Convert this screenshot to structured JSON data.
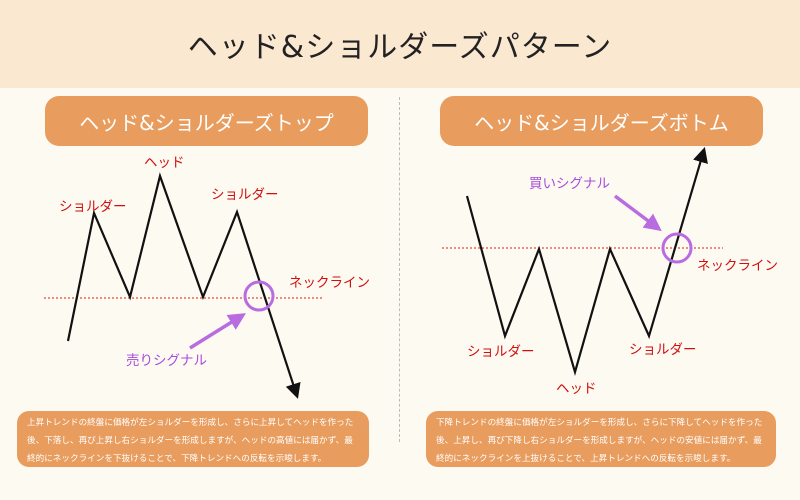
{
  "title": "ヘッド&ショルダーズパターン",
  "top": {
    "heading": "ヘッド&ショルダーズトップ",
    "labels": {
      "head": "ヘッド",
      "left_shoulder": "ショルダー",
      "right_shoulder": "ショルダー",
      "neckline": "ネックライン",
      "signal": "売りシグナル"
    },
    "description": "上昇トレンドの終盤に価格が左ショルダーを形成し、さらに上昇してヘッドを作った後、下落し、再び上昇し右ショルダーを形成しますが、ヘッドの高値には届かず、最終的にネックラインを下抜けることで、下降トレンドへの反転を示唆します。"
  },
  "bottom": {
    "heading": "ヘッド&ショルダーズボトム",
    "labels": {
      "head": "ヘッド",
      "left_shoulder": "ショルダー",
      "right_shoulder": "ショルダー",
      "neckline": "ネックライン",
      "signal": "買いシグナル"
    },
    "description": "下降トレンドの終盤に価格が左ショルダーを形成し、さらに下降してヘッドを作った後、上昇し、再び下降し右ショルダーを形成しますが、ヘッドの安値には届かず、最終的にネックラインを上抜けることで、上昇トレンドへの反転を示唆します。"
  },
  "colors": {
    "accent": "#e89d5f",
    "header_bg": "#fbe8d1",
    "label_red": "#d10f0f",
    "signal_purple": "#a84cdc"
  }
}
